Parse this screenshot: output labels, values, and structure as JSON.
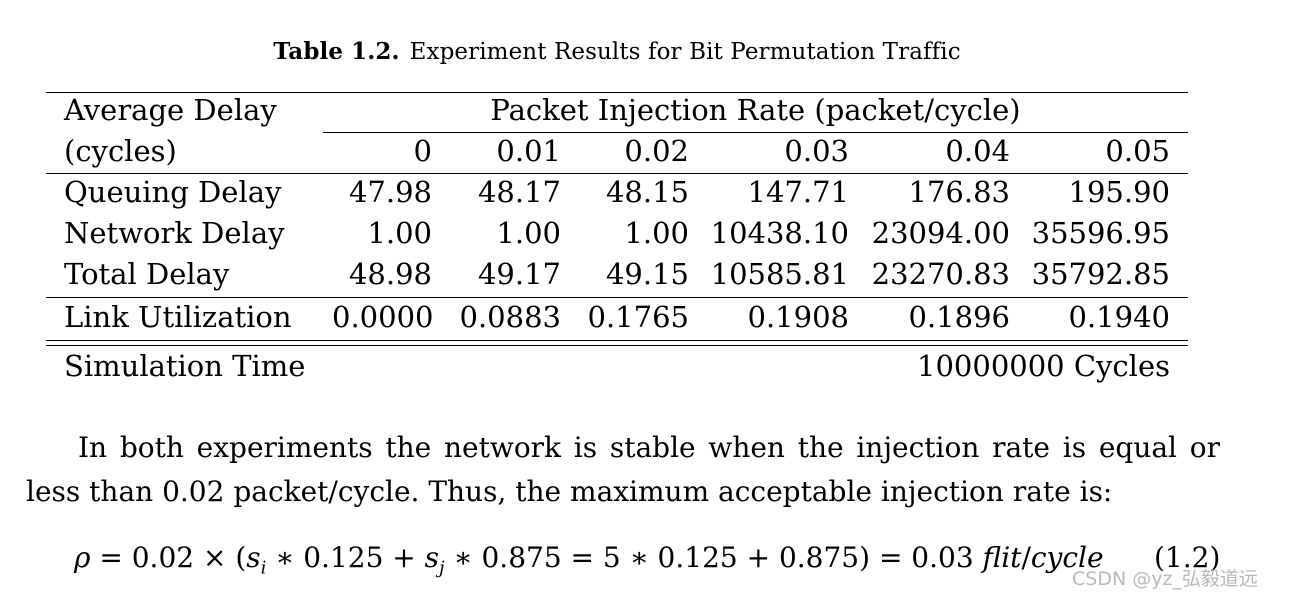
{
  "caption": {
    "label": "Table 1.2.",
    "text": "Experiment Results for Bit Permutation Traffic"
  },
  "table": {
    "stub_header": [
      "Average Delay",
      "(cycles)"
    ],
    "span_header": "Packet Injection Rate (packet/cycle)",
    "columns": [
      "0",
      "0.01",
      "0.02",
      "0.03",
      "0.04",
      "0.05"
    ],
    "rows": [
      {
        "label": "Queuing Delay",
        "values": [
          "47.98",
          "48.17",
          "48.15",
          "147.71",
          "176.83",
          "195.90"
        ]
      },
      {
        "label": "Network Delay",
        "values": [
          "1.00",
          "1.00",
          "1.00",
          "10438.10",
          "23094.00",
          "35596.95"
        ]
      },
      {
        "label": "Total Delay",
        "values": [
          "48.98",
          "49.17",
          "49.15",
          "10585.81",
          "23270.83",
          "35792.85"
        ]
      },
      {
        "label": "Link Utilization",
        "values": [
          "0.0000",
          "0.0883",
          "0.1765",
          "0.1908",
          "0.1896",
          "0.1940"
        ]
      }
    ],
    "footer": {
      "label": "Simulation Time",
      "value": "10000000 Cycles"
    }
  },
  "paragraph": "In both experiments the network is stable when the injection rate is equal or less than 0.02 packet/cycle. Thus, the maximum acceptable injection rate is:",
  "equation": {
    "text": "ρ = 0.02 × (s_i ∗ 0.125 + s_j ∗ 0.875 = 5 ∗ 0.125 + 0.875) = 0.03 flit/cycle",
    "number": "(1.2)"
  },
  "watermark": "CSDN @yz_弘毅道远"
}
